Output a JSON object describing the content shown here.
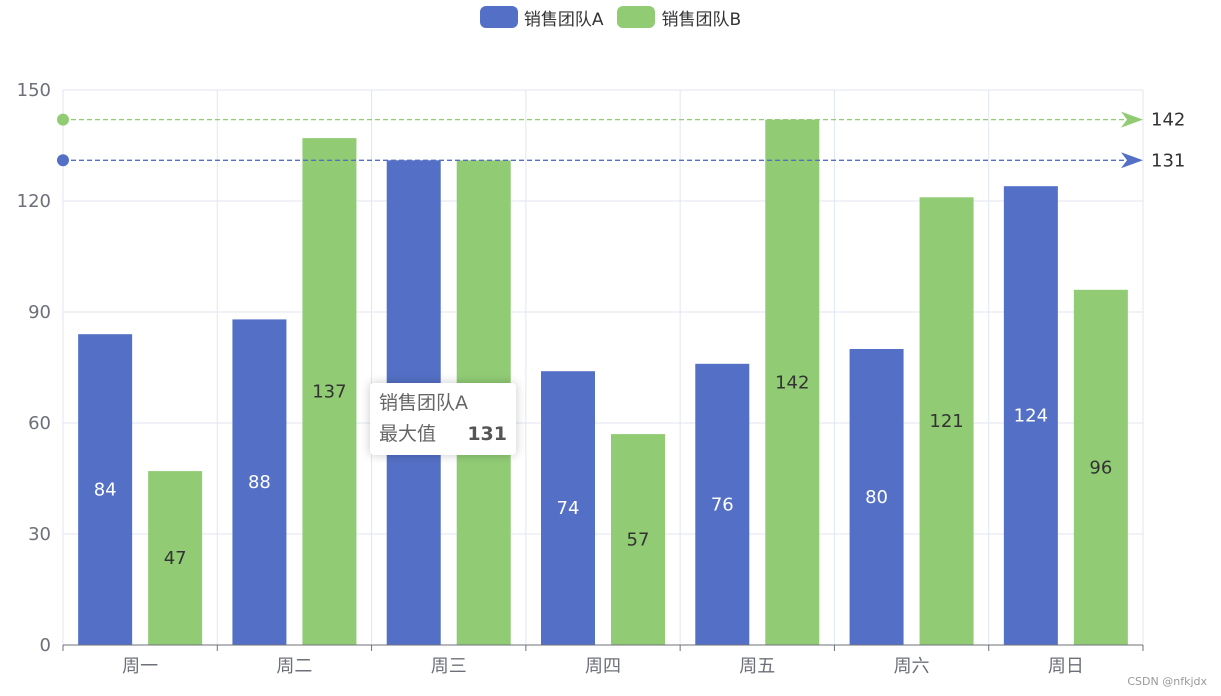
{
  "legend": [
    {
      "name": "销售团队A",
      "color": "#5470c6"
    },
    {
      "name": "销售团队B",
      "color": "#91cc75"
    }
  ],
  "chart_data": {
    "type": "bar",
    "categories": [
      "周一",
      "周二",
      "周三",
      "周四",
      "周五",
      "周六",
      "周日"
    ],
    "series": [
      {
        "name": "销售团队A",
        "color": "#5470c6",
        "values": [
          84,
          88,
          131,
          74,
          76,
          80,
          124
        ],
        "label_color": "#ffffff"
      },
      {
        "name": "销售团队B",
        "color": "#91cc75",
        "values": [
          47,
          137,
          131,
          57,
          142,
          121,
          96
        ],
        "label_color": "#333333"
      }
    ],
    "ylim": [
      0,
      150
    ],
    "yticks": [
      0,
      30,
      60,
      90,
      120,
      150
    ],
    "grid": true,
    "legend_position": "top-center",
    "mark_lines": [
      {
        "series": "销售团队A",
        "type": "max",
        "value": 131,
        "color": "#5470c6"
      },
      {
        "series": "销售团队B",
        "type": "max",
        "value": 142,
        "color": "#91cc75"
      }
    ]
  },
  "tooltip": {
    "title": "销售团队A",
    "label": "最大值",
    "value": "131"
  },
  "watermark": "CSDN @nfkjdx"
}
